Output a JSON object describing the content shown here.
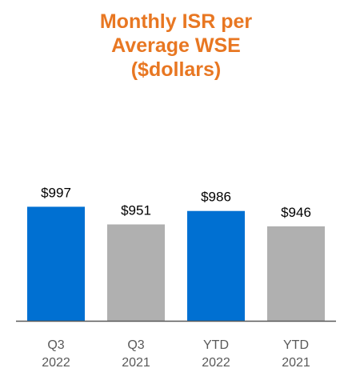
{
  "chart_data": {
    "type": "bar",
    "title_lines": [
      "Monthly ISR per",
      "Average WSE",
      "($dollars)"
    ],
    "categories": [
      [
        "Q3",
        "2022"
      ],
      [
        "Q3",
        "2021"
      ],
      [
        "YTD",
        "2022"
      ],
      [
        "YTD",
        "2021"
      ]
    ],
    "values": [
      997,
      951,
      986,
      946
    ],
    "data_labels": [
      "$997",
      "$951",
      "$986",
      "$946"
    ],
    "colors": [
      "#0070D2",
      "#B0B0B0",
      "#0070D2",
      "#B0B0B0"
    ],
    "ylim": [
      0,
      1000
    ],
    "grid": false,
    "legend": "none"
  },
  "colors": {
    "title": "#E87722",
    "axis": "#595959"
  }
}
